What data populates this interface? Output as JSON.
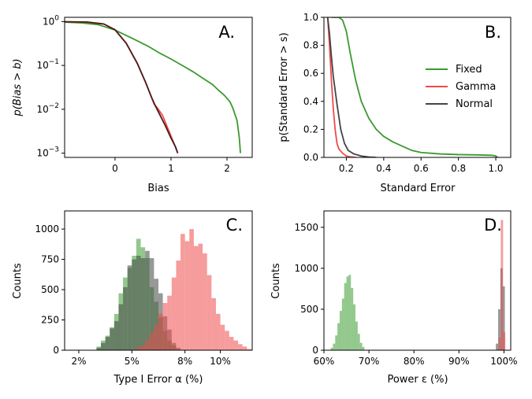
{
  "colors": {
    "fixed": "#3a9a2f",
    "gamma": "#ef4a4a",
    "normal": "#444444",
    "normal_dark": "#4b1b1b"
  },
  "chart_data": [
    {
      "id": "A",
      "type": "line",
      "panel_letter": "A.",
      "xlabel": "Bias",
      "ylabel": "p(Bias > b)",
      "xlim": [
        -0.9,
        2.45
      ],
      "ylim": [
        0.0008,
        1.25
      ],
      "yscale": "log",
      "xticks": [
        0,
        1,
        2
      ],
      "xtick_labels": [
        "0",
        "1",
        "2"
      ],
      "yticks": [
        1,
        0.1,
        0.01,
        0.001
      ],
      "ytick_labels": [
        "10^0",
        "10^-1",
        "10^-2",
        "10^-3"
      ],
      "series": [
        {
          "key": "fixed",
          "x": [
            -0.9,
            -0.6,
            -0.3,
            0.0,
            0.3,
            0.6,
            0.8,
            1.0,
            1.2,
            1.4,
            1.6,
            1.75,
            1.85,
            1.95,
            2.05,
            2.1,
            2.18,
            2.22,
            2.24
          ],
          "y": [
            0.97,
            0.93,
            0.85,
            0.64,
            0.42,
            0.27,
            0.19,
            0.14,
            0.1,
            0.071,
            0.048,
            0.036,
            0.027,
            0.021,
            0.015,
            0.011,
            0.0055,
            0.0022,
            0.001
          ]
        },
        {
          "key": "gamma",
          "x": [
            -0.9,
            -0.5,
            -0.2,
            0.0,
            0.2,
            0.4,
            0.55,
            0.65,
            0.7,
            0.75,
            0.85,
            0.95,
            1.05,
            1.12
          ],
          "y": [
            0.99,
            0.975,
            0.88,
            0.65,
            0.32,
            0.11,
            0.04,
            0.019,
            0.013,
            0.011,
            0.0072,
            0.0035,
            0.0017,
            0.001
          ]
        },
        {
          "key": "normal_dark",
          "x": [
            -0.9,
            -0.5,
            -0.2,
            0.0,
            0.2,
            0.4,
            0.55,
            0.65,
            0.72,
            0.8,
            0.9,
            1.0,
            1.08,
            1.12
          ],
          "y": [
            0.99,
            0.975,
            0.88,
            0.65,
            0.32,
            0.11,
            0.04,
            0.019,
            0.012,
            0.0075,
            0.0042,
            0.0022,
            0.0014,
            0.001
          ]
        }
      ]
    },
    {
      "id": "B",
      "type": "line",
      "panel_letter": "B.",
      "xlabel": "Standard Error",
      "ylabel": "p(Standard Error > s)",
      "xlim": [
        0.08,
        1.08
      ],
      "ylim": [
        0,
        1
      ],
      "xticks": [
        0.2,
        0.4,
        0.6,
        0.8,
        1.0
      ],
      "xtick_labels": [
        "0.2",
        "0.4",
        "0.6",
        "0.8",
        "1.0"
      ],
      "yticks": [
        0,
        0.2,
        0.4,
        0.6,
        0.8,
        1.0
      ],
      "ytick_labels": [
        "0.0",
        "0.2",
        "0.4",
        "0.6",
        "0.8",
        "1.0"
      ],
      "legend": [
        "Fixed",
        "Gamma",
        "Normal"
      ],
      "legend_position": "right",
      "series": [
        {
          "key": "fixed",
          "name": "Fixed",
          "x": [
            0.12,
            0.16,
            0.18,
            0.2,
            0.22,
            0.25,
            0.28,
            0.32,
            0.36,
            0.4,
            0.45,
            0.5,
            0.55,
            0.6,
            0.7,
            0.8,
            0.9,
            0.98,
            1.0,
            1.01
          ],
          "y": [
            1.0,
            1.0,
            0.98,
            0.9,
            0.75,
            0.55,
            0.4,
            0.28,
            0.2,
            0.15,
            0.11,
            0.08,
            0.05,
            0.035,
            0.025,
            0.02,
            0.018,
            0.015,
            0.01,
            0.0
          ]
        },
        {
          "key": "gamma",
          "name": "Gamma",
          "x": [
            0.1,
            0.11,
            0.12,
            0.13,
            0.14,
            0.15,
            0.16,
            0.18,
            0.2,
            0.22,
            0.25
          ],
          "y": [
            1.0,
            0.8,
            0.55,
            0.35,
            0.2,
            0.1,
            0.06,
            0.03,
            0.01,
            0.004,
            0.0
          ]
        },
        {
          "key": "normal",
          "name": "Normal",
          "x": [
            0.1,
            0.11,
            0.12,
            0.13,
            0.15,
            0.17,
            0.19,
            0.21,
            0.24,
            0.28,
            0.32,
            0.36
          ],
          "y": [
            1.0,
            0.88,
            0.72,
            0.58,
            0.38,
            0.2,
            0.1,
            0.05,
            0.025,
            0.01,
            0.003,
            0.0
          ]
        }
      ]
    },
    {
      "id": "C",
      "type": "bar",
      "panel_letter": "C.",
      "xlabel": "Type I Error α (%)",
      "ylabel": "Counts",
      "xlim": [
        1.2,
        11.8
      ],
      "ylim": [
        0,
        1150
      ],
      "xticks": [
        2,
        5,
        8,
        10
      ],
      "xtick_labels": [
        "2%",
        "5%",
        "8%",
        "10%"
      ],
      "yticks": [
        0,
        250,
        500,
        750,
        1000
      ],
      "ytick_labels": [
        "0",
        "250",
        "500",
        "750",
        "1000"
      ],
      "bin_width": 0.25,
      "series": [
        {
          "key": "fixed",
          "start": 3.0,
          "values": [
            30,
            80,
            120,
            190,
            300,
            470,
            600,
            680,
            780,
            920,
            850,
            760,
            520,
            400,
            270,
            160,
            80,
            40
          ]
        },
        {
          "key": "normal",
          "start": 3.0,
          "values": [
            20,
            60,
            110,
            180,
            240,
            380,
            520,
            700,
            750,
            780,
            760,
            820,
            760,
            590,
            470,
            280,
            170,
            60,
            20
          ]
        },
        {
          "key": "gamma",
          "start": 5.0,
          "values": [
            5,
            20,
            40,
            80,
            140,
            210,
            300,
            390,
            450,
            600,
            740,
            960,
            900,
            1000,
            860,
            880,
            800,
            620,
            430,
            300,
            210,
            160,
            110,
            80,
            50,
            30,
            10
          ]
        }
      ]
    },
    {
      "id": "D",
      "type": "bar",
      "panel_letter": "D.",
      "xlabel": "Power ε (%)",
      "ylabel": "Counts",
      "xlim": [
        60,
        101.5
      ],
      "ylim": [
        0,
        1700
      ],
      "xticks": [
        60,
        70,
        80,
        90,
        100
      ],
      "xtick_labels": [
        "60%",
        "70%",
        "80%",
        "90%",
        "100%"
      ],
      "yticks": [
        0,
        500,
        1000,
        1500
      ],
      "ytick_labels": [
        "0",
        "500",
        "1000",
        "1500"
      ],
      "bin_width": 0.5,
      "series": [
        {
          "key": "fixed",
          "start": 61.5,
          "values": [
            30,
            80,
            180,
            330,
            480,
            630,
            820,
            900,
            920,
            760,
            560,
            350,
            200,
            90,
            40
          ]
        },
        {
          "key": "normal",
          "start": 98.2,
          "values": [
            80,
            500,
            1000,
            780
          ]
        },
        {
          "key": "gamma",
          "start": 98.8,
          "values": [
            150,
            1590,
            220
          ]
        }
      ]
    }
  ]
}
